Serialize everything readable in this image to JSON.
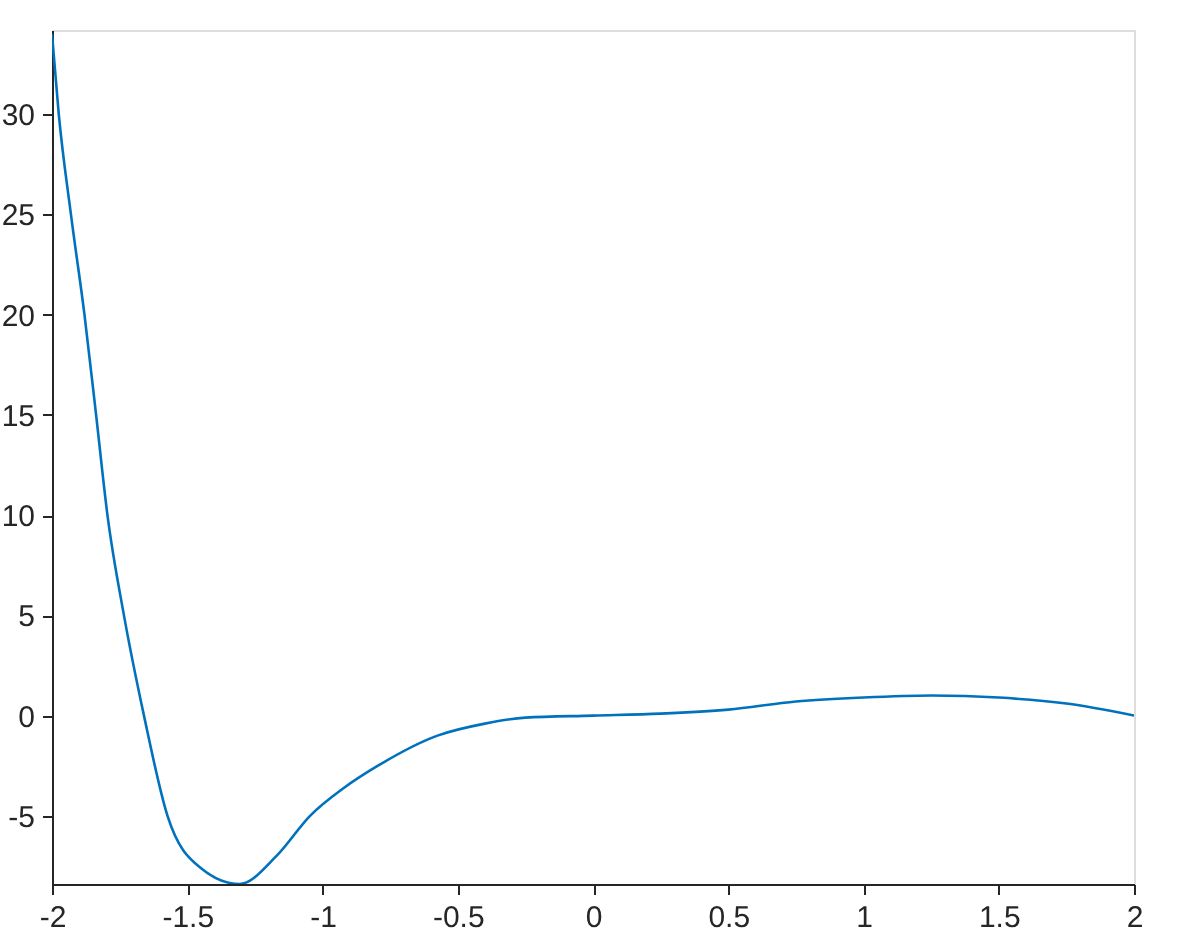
{
  "chart_data": {
    "type": "line",
    "x": [
      -2,
      -1.975,
      -1.93,
      -1.88,
      -1.837,
      -1.795,
      -1.734,
      -1.66,
      -1.573,
      -1.45,
      -1.307,
      -1.17,
      -1.046,
      -0.92,
      -0.795,
      -0.575,
      -0.4,
      -0.25,
      0,
      0.25,
      0.5,
      0.75,
      1,
      1.25,
      1.5,
      1.75,
      2
    ],
    "series": [
      {
        "color": "#0072bd",
        "values": [
          34,
          30,
          25,
          20,
          15,
          10,
          5,
          0,
          -5,
          -7.6,
          -8.4,
          -7,
          -5,
          -3.6,
          -2.5,
          -1,
          -0.4,
          -0.1,
          0,
          0.1,
          0.3,
          0.7,
          0.9,
          1,
          0.9,
          0.6,
          0
        ]
      }
    ],
    "xlim": [
      -2,
      2
    ],
    "xticks": [
      -2,
      -1.5,
      -1,
      -0.5,
      0,
      0.5,
      1,
      1.5,
      2
    ],
    "ylim": [
      -8.4,
      34.2
    ],
    "yticks": [
      -5,
      0,
      5,
      10,
      15,
      20,
      25,
      30
    ],
    "grid": false,
    "legend": false,
    "marker": "none",
    "line_style": "solid"
  }
}
